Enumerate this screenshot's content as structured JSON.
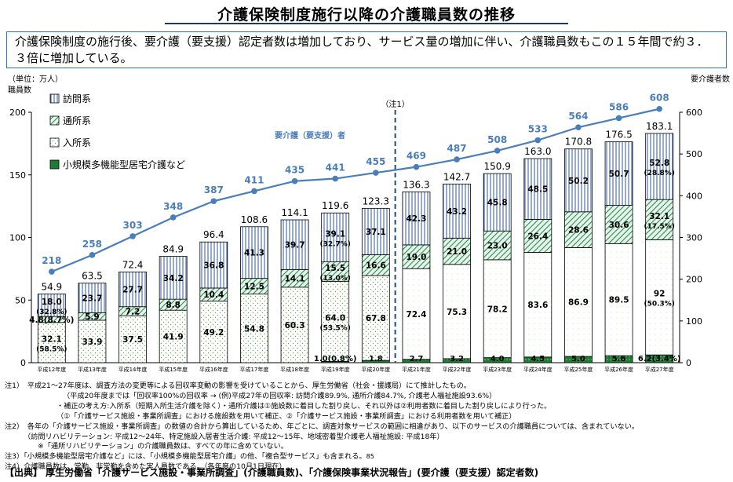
{
  "title": "介護保険制度施行以降の介護職員数の推移",
  "summary": "介護保険制度の施行後、要介護（要支援）認定者数は増加しており、サービス量の増加に伴い、介護職員数もこの１５年間で約３．３倍に増加している。",
  "chart_data": {
    "type": "bar",
    "stacked": true,
    "unit_label": "（単位：万人）",
    "left_axis_label": "職員数",
    "right_axis_label": "要介護者数",
    "ylim": [
      0,
      200
    ],
    "y_ticks": [
      0,
      50,
      100,
      150,
      200
    ],
    "y2lim": [
      0,
      600
    ],
    "y2_ticks": [
      0,
      100,
      200,
      300,
      400,
      500,
      600
    ],
    "categories": [
      "平成12年度",
      "平成13年度",
      "平成14年度",
      "平成15年度",
      "平成16年度",
      "平成17年度",
      "平成18年度",
      "平成19年度",
      "平成20年度",
      "平成21年度",
      "平成22年度",
      "平成23年度",
      "平成24年度",
      "平成25年度",
      "平成26年度",
      "平成27年度"
    ],
    "series": [
      {
        "name": "小規模多機能型居宅介護など",
        "values": [
          0,
          0,
          0,
          0,
          0,
          0,
          0,
          1.0,
          1.8,
          2.7,
          3.2,
          4.0,
          4.5,
          5.0,
          5.6,
          6.2
        ],
        "labels": [
          "",
          "",
          "",
          "",
          "",
          "",
          "",
          "1.0(0.8%)",
          "1.8",
          "2.7",
          "3.2",
          "4.0",
          "4.5",
          "5.0",
          "5.6",
          "6.2(3.4%)"
        ]
      },
      {
        "name": "入所系",
        "values": [
          32.1,
          33.9,
          37.5,
          41.9,
          49.2,
          54.8,
          60.3,
          64.0,
          67.8,
          72.4,
          75.3,
          78.2,
          83.6,
          86.9,
          89.5,
          92
        ],
        "labels": [
          "32.1",
          "33.9",
          "37.5",
          "41.9",
          "49.2",
          "54.8",
          "60.3",
          "64.0",
          "67.8",
          "72.4",
          "75.3",
          "78.2",
          "83.6",
          "86.9",
          "89.5",
          "92"
        ],
        "sublabels": [
          "(58.5%)",
          "",
          "",
          "",
          "",
          "",
          "",
          "(53.5%)",
          "",
          "",
          "",
          "",
          "",
          "",
          "",
          "(50.3%)"
        ]
      },
      {
        "name": "通所系",
        "values": [
          4.8,
          5.9,
          7.2,
          8.8,
          10.4,
          12.5,
          14.1,
          15.5,
          16.6,
          19.0,
          21.0,
          23.0,
          26.4,
          28.6,
          30.6,
          32.1
        ],
        "labels": [
          "4.8(8.7%)",
          "5.9",
          "7.2",
          "8.8",
          "10.4",
          "12.5",
          "14.1",
          "15.5",
          "16.6",
          "19.0",
          "21.0",
          "23.0",
          "26.4",
          "28.6",
          "30.6",
          "32.1"
        ],
        "sublabels": [
          "",
          "",
          "",
          "",
          "",
          "",
          "",
          "(13.0%)",
          "",
          "",
          "",
          "",
          "",
          "",
          "",
          "(17.5%)"
        ]
      },
      {
        "name": "訪問系",
        "values": [
          18.0,
          23.7,
          27.7,
          34.2,
          36.8,
          41.3,
          39.7,
          39.1,
          37.1,
          42.3,
          43.2,
          45.8,
          48.5,
          50.2,
          50.7,
          52.8
        ],
        "labels": [
          "18.0",
          "23.7",
          "27.7",
          "34.2",
          "36.8",
          "41.3",
          "39.7",
          "39.1",
          "37.1",
          "42.3",
          "43.2",
          "45.8",
          "48.5",
          "50.2",
          "50.7",
          "52.8"
        ],
        "sublabels": [
          "(32.8%)",
          "",
          "",
          "",
          "",
          "",
          "",
          "(32.7%)",
          "",
          "",
          "",
          "",
          "",
          "",
          "",
          "(28.8%)"
        ]
      }
    ],
    "totals": [
      "54.9",
      "63.5",
      "72.4",
      "84.9",
      "96.4",
      "108.6",
      "114.1",
      "119.6",
      "123.3",
      "136.3",
      "142.7",
      "150.9",
      "163.0",
      "170.8",
      "176.5",
      "183.1"
    ],
    "line_series": {
      "name": "要介護（要支援）者",
      "values": [
        218,
        258,
        303,
        348,
        387,
        411,
        435,
        441,
        455,
        469,
        487,
        508,
        533,
        564,
        586,
        608
      ]
    },
    "annotation": "（注1）",
    "legend": [
      "訪問系",
      "通所系",
      "入所系",
      "小規模多機能型居宅介護など"
    ],
    "colors": {
      "line": "#4a7ebb",
      "houmon": "#2e5597",
      "tsusho": "#2e8b57",
      "nyusho": "#6aa84f",
      "dashed": "#1f4e79"
    }
  },
  "notes": [
    "注1）　平成21〜27年度は、調査方法の変更等による回収率変動の影響を受けていることから、厚生労働省（社会・援護局）にて推計したもの。",
    "（平成20年度までは「回収率100%の回収率 → (例)平成27年の回収率: 訪問介護89.9%, 通所介護84.7%, 介護老人福祉施設93.6%）",
    "・補正の考え方:入所系（短期入所生活介護を除く）・通所介護は①施設数に着目した割り戻し、それ以外は②利用者数に着目した割り戻しにより行った。",
    "（①「介護サービス施設・事業所調査」における施設数を用いて補正、②「介護サービス施設・事業所調査」における利用者数を用いて補正）",
    "注2）　各年の「介護サービス施設・事業所調査」の数値の合計から算出しているため、年ごとに、調査対象サービスの範囲に相違があり、以下のサービスの介護職員については、含まれていない。",
    "（訪問リハビリテーション: 平成12〜24年、特定施設入居者生活介護: 平成12〜15年、地域密着型介護老人福祉施設: 平成18年）",
    "※「通所リハビリテーション」の介護職員数は、すべての年に含めていない。",
    "注3）「小規模多機能型居宅介護など」には、「小規模多機能型居宅介護」の他、「複合型サービス」も含まれる。",
    "注4）介護職員数は、常勤、非常勤を含めた実人員数である。（各年度の10月1日現在）"
  ],
  "page_number": "85",
  "source": "【出典】 厚生労働省「介護サービス施設・事業所調査」(介護職員数)、「介護保険事業状況報告」(要介護（要支援）認定者数)"
}
